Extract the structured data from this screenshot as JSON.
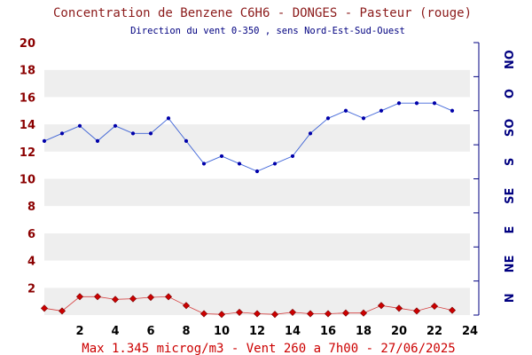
{
  "title": "Concentration de Benzene C6H6  -   DONGES - Pasteur (rouge)",
  "subtitle": "Direction du vent 0-350 , sens Nord-Est-Sud-Ouest",
  "footer": "Max 1.345 microg/m3 - Vent 260  a 7h00 - 27/06/2025",
  "colors": {
    "title": "#8b1a1a",
    "subtitle": "#000080",
    "footer": "#cc0000",
    "concentration_series": "#cc0000",
    "wind_series": "#0033cc",
    "band": "#eeeeee"
  },
  "chart_data": {
    "type": "line",
    "title": "Concentration de Benzene C6H6  -   DONGES - Pasteur (rouge)",
    "subtitle": "Direction du vent 0-350 , sens Nord-Est-Sud-Ouest",
    "x_ticks": [
      2,
      4,
      6,
      8,
      10,
      12,
      14,
      16,
      18,
      20,
      22,
      24
    ],
    "xlim": [
      0,
      24
    ],
    "ylim": [
      0,
      20
    ],
    "y_ticks": [
      2,
      4,
      6,
      8,
      10,
      12,
      14,
      16,
      18,
      20
    ],
    "y2_ticks": [
      "N",
      "NE",
      "E",
      "SE",
      "S",
      "SO",
      "O",
      "NO"
    ],
    "y2lim": [
      0,
      360
    ],
    "grid": "horizontal alternating bands",
    "series": [
      {
        "axis": "left",
        "color": "#cc0000",
        "marker": "diamond",
        "x": [
          0,
          1,
          2,
          3,
          4,
          5,
          6,
          7,
          8,
          9,
          10,
          11,
          12,
          13,
          14,
          15,
          16,
          17,
          18,
          19,
          20,
          21,
          22,
          23
        ],
        "values": [
          0.5,
          0.3,
          1.35,
          1.35,
          1.15,
          1.2,
          1.3,
          1.345,
          0.7,
          0.1,
          0.05,
          0.2,
          0.1,
          0.05,
          0.2,
          0.1,
          0.1,
          0.15,
          0.15,
          0.7,
          0.5,
          0.3,
          0.65,
          0.35
        ]
      },
      {
        "axis": "right",
        "color": "#0033cc",
        "marker": "dot",
        "x": [
          0,
          1,
          2,
          3,
          4,
          5,
          6,
          7,
          8,
          9,
          10,
          11,
          12,
          13,
          14,
          15,
          16,
          17,
          18,
          19,
          20,
          21,
          22,
          23
        ],
        "values": [
          230,
          240,
          250,
          230,
          250,
          240,
          240,
          260,
          230,
          200,
          210,
          200,
          190,
          200,
          210,
          240,
          260,
          270,
          260,
          270,
          280,
          280,
          280,
          270
        ]
      }
    ]
  }
}
